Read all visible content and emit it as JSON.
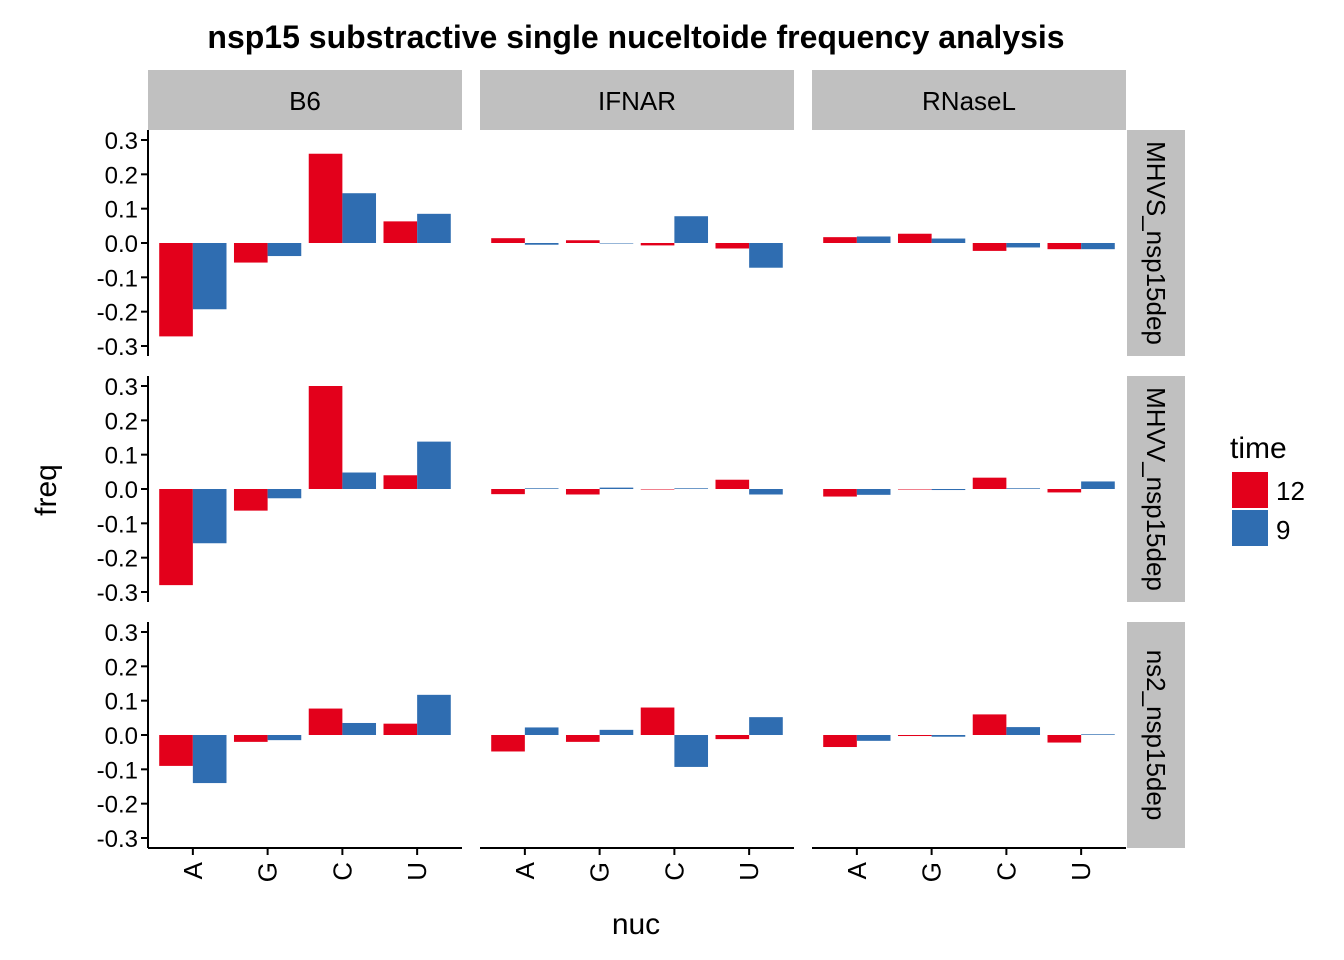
{
  "chart_data": {
    "type": "bar",
    "title": "nsp15 substractive single nuceltoide frequency analysis",
    "xlabel": "nuc",
    "ylabel": "freq",
    "ylim": [
      -0.3,
      0.3
    ],
    "yticks": [
      0.3,
      0.2,
      0.1,
      0.0,
      -0.1,
      -0.2,
      -0.3
    ],
    "ytick_labels": [
      "0.3",
      "0.2",
      "0.1",
      "0.0",
      "-0.1",
      "-0.2",
      "-0.3"
    ],
    "categories": [
      "A",
      "G",
      "C",
      "U"
    ],
    "columns": [
      "B6",
      "IFNAR",
      "RNaseL"
    ],
    "rows": [
      "MHVS_nsp15dep",
      "MHVV_nsp15dep",
      "ns2_nsp15dep"
    ],
    "legend": {
      "title": "time",
      "position": "right",
      "entries": [
        {
          "name": "12",
          "color": "#e3001b"
        },
        {
          "name": "9",
          "color": "#2f6db1"
        }
      ]
    },
    "panels": [
      {
        "row": "MHVS_nsp15dep",
        "column": "B6",
        "series": [
          {
            "name": "12",
            "values": [
              -0.272,
              -0.057,
              0.26,
              0.063
            ]
          },
          {
            "name": "9",
            "values": [
              -0.193,
              -0.038,
              0.145,
              0.085
            ]
          }
        ]
      },
      {
        "row": "MHVS_nsp15dep",
        "column": "IFNAR",
        "series": [
          {
            "name": "12",
            "values": [
              0.014,
              0.008,
              -0.007,
              -0.016
            ]
          },
          {
            "name": "9",
            "values": [
              -0.005,
              0.0,
              0.078,
              -0.072
            ]
          }
        ]
      },
      {
        "row": "MHVS_nsp15dep",
        "column": "RNaseL",
        "series": [
          {
            "name": "12",
            "values": [
              0.017,
              0.027,
              -0.023,
              -0.018
            ]
          },
          {
            "name": "9",
            "values": [
              0.019,
              0.013,
              -0.013,
              -0.018
            ]
          }
        ]
      },
      {
        "row": "MHVV_nsp15dep",
        "column": "B6",
        "series": [
          {
            "name": "12",
            "values": [
              -0.28,
              -0.063,
              0.3,
              0.04
            ]
          },
          {
            "name": "9",
            "values": [
              -0.158,
              -0.027,
              0.048,
              0.138
            ]
          }
        ]
      },
      {
        "row": "MHVV_nsp15dep",
        "column": "IFNAR",
        "series": [
          {
            "name": "12",
            "values": [
              -0.015,
              -0.016,
              0.0,
              0.027
            ]
          },
          {
            "name": "9",
            "values": [
              0.002,
              0.004,
              0.002,
              -0.016
            ]
          }
        ]
      },
      {
        "row": "MHVV_nsp15dep",
        "column": "RNaseL",
        "series": [
          {
            "name": "12",
            "values": [
              -0.022,
              0.0,
              0.033,
              -0.01
            ]
          },
          {
            "name": "9",
            "values": [
              -0.017,
              -0.003,
              0.002,
              0.022
            ]
          }
        ]
      },
      {
        "row": "ns2_nsp15dep",
        "column": "B6",
        "series": [
          {
            "name": "12",
            "values": [
              -0.09,
              -0.02,
              0.077,
              0.033
            ]
          },
          {
            "name": "9",
            "values": [
              -0.14,
              -0.015,
              0.035,
              0.117
            ]
          }
        ]
      },
      {
        "row": "ns2_nsp15dep",
        "column": "IFNAR",
        "series": [
          {
            "name": "12",
            "values": [
              -0.048,
              -0.02,
              0.08,
              -0.012
            ]
          },
          {
            "name": "9",
            "values": [
              0.022,
              0.015,
              -0.093,
              0.052
            ]
          }
        ]
      },
      {
        "row": "ns2_nsp15dep",
        "column": "RNaseL",
        "series": [
          {
            "name": "12",
            "values": [
              -0.035,
              -0.003,
              0.06,
              -0.022
            ]
          },
          {
            "name": "9",
            "values": [
              -0.017,
              -0.005,
              0.023,
              0.002
            ]
          }
        ]
      }
    ]
  }
}
